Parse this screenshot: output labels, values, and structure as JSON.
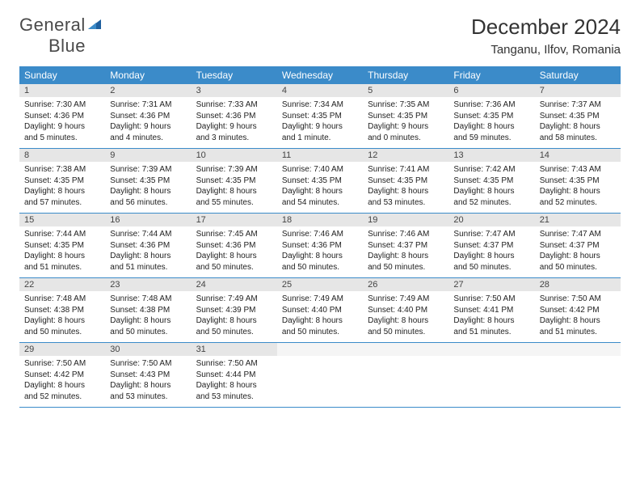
{
  "brand": {
    "word1": "General",
    "word2": "Blue"
  },
  "title": "December 2024",
  "location": "Tanganu, Ilfov, Romania",
  "colors": {
    "header_bg": "#3b8bc9",
    "header_text": "#ffffff",
    "daynum_bg": "#e6e6e6",
    "row_border": "#3b8bc9",
    "logo_gray": "#4a4a4a",
    "logo_blue": "#2b7bbf"
  },
  "weekdays": [
    "Sunday",
    "Monday",
    "Tuesday",
    "Wednesday",
    "Thursday",
    "Friday",
    "Saturday"
  ],
  "weeks": [
    [
      {
        "n": "1",
        "sr": "Sunrise: 7:30 AM",
        "ss": "Sunset: 4:36 PM",
        "dl": "Daylight: 9 hours and 5 minutes."
      },
      {
        "n": "2",
        "sr": "Sunrise: 7:31 AM",
        "ss": "Sunset: 4:36 PM",
        "dl": "Daylight: 9 hours and 4 minutes."
      },
      {
        "n": "3",
        "sr": "Sunrise: 7:33 AM",
        "ss": "Sunset: 4:36 PM",
        "dl": "Daylight: 9 hours and 3 minutes."
      },
      {
        "n": "4",
        "sr": "Sunrise: 7:34 AM",
        "ss": "Sunset: 4:35 PM",
        "dl": "Daylight: 9 hours and 1 minute."
      },
      {
        "n": "5",
        "sr": "Sunrise: 7:35 AM",
        "ss": "Sunset: 4:35 PM",
        "dl": "Daylight: 9 hours and 0 minutes."
      },
      {
        "n": "6",
        "sr": "Sunrise: 7:36 AM",
        "ss": "Sunset: 4:35 PM",
        "dl": "Daylight: 8 hours and 59 minutes."
      },
      {
        "n": "7",
        "sr": "Sunrise: 7:37 AM",
        "ss": "Sunset: 4:35 PM",
        "dl": "Daylight: 8 hours and 58 minutes."
      }
    ],
    [
      {
        "n": "8",
        "sr": "Sunrise: 7:38 AM",
        "ss": "Sunset: 4:35 PM",
        "dl": "Daylight: 8 hours and 57 minutes."
      },
      {
        "n": "9",
        "sr": "Sunrise: 7:39 AM",
        "ss": "Sunset: 4:35 PM",
        "dl": "Daylight: 8 hours and 56 minutes."
      },
      {
        "n": "10",
        "sr": "Sunrise: 7:39 AM",
        "ss": "Sunset: 4:35 PM",
        "dl": "Daylight: 8 hours and 55 minutes."
      },
      {
        "n": "11",
        "sr": "Sunrise: 7:40 AM",
        "ss": "Sunset: 4:35 PM",
        "dl": "Daylight: 8 hours and 54 minutes."
      },
      {
        "n": "12",
        "sr": "Sunrise: 7:41 AM",
        "ss": "Sunset: 4:35 PM",
        "dl": "Daylight: 8 hours and 53 minutes."
      },
      {
        "n": "13",
        "sr": "Sunrise: 7:42 AM",
        "ss": "Sunset: 4:35 PM",
        "dl": "Daylight: 8 hours and 52 minutes."
      },
      {
        "n": "14",
        "sr": "Sunrise: 7:43 AM",
        "ss": "Sunset: 4:35 PM",
        "dl": "Daylight: 8 hours and 52 minutes."
      }
    ],
    [
      {
        "n": "15",
        "sr": "Sunrise: 7:44 AM",
        "ss": "Sunset: 4:35 PM",
        "dl": "Daylight: 8 hours and 51 minutes."
      },
      {
        "n": "16",
        "sr": "Sunrise: 7:44 AM",
        "ss": "Sunset: 4:36 PM",
        "dl": "Daylight: 8 hours and 51 minutes."
      },
      {
        "n": "17",
        "sr": "Sunrise: 7:45 AM",
        "ss": "Sunset: 4:36 PM",
        "dl": "Daylight: 8 hours and 50 minutes."
      },
      {
        "n": "18",
        "sr": "Sunrise: 7:46 AM",
        "ss": "Sunset: 4:36 PM",
        "dl": "Daylight: 8 hours and 50 minutes."
      },
      {
        "n": "19",
        "sr": "Sunrise: 7:46 AM",
        "ss": "Sunset: 4:37 PM",
        "dl": "Daylight: 8 hours and 50 minutes."
      },
      {
        "n": "20",
        "sr": "Sunrise: 7:47 AM",
        "ss": "Sunset: 4:37 PM",
        "dl": "Daylight: 8 hours and 50 minutes."
      },
      {
        "n": "21",
        "sr": "Sunrise: 7:47 AM",
        "ss": "Sunset: 4:37 PM",
        "dl": "Daylight: 8 hours and 50 minutes."
      }
    ],
    [
      {
        "n": "22",
        "sr": "Sunrise: 7:48 AM",
        "ss": "Sunset: 4:38 PM",
        "dl": "Daylight: 8 hours and 50 minutes."
      },
      {
        "n": "23",
        "sr": "Sunrise: 7:48 AM",
        "ss": "Sunset: 4:38 PM",
        "dl": "Daylight: 8 hours and 50 minutes."
      },
      {
        "n": "24",
        "sr": "Sunrise: 7:49 AM",
        "ss": "Sunset: 4:39 PM",
        "dl": "Daylight: 8 hours and 50 minutes."
      },
      {
        "n": "25",
        "sr": "Sunrise: 7:49 AM",
        "ss": "Sunset: 4:40 PM",
        "dl": "Daylight: 8 hours and 50 minutes."
      },
      {
        "n": "26",
        "sr": "Sunrise: 7:49 AM",
        "ss": "Sunset: 4:40 PM",
        "dl": "Daylight: 8 hours and 50 minutes."
      },
      {
        "n": "27",
        "sr": "Sunrise: 7:50 AM",
        "ss": "Sunset: 4:41 PM",
        "dl": "Daylight: 8 hours and 51 minutes."
      },
      {
        "n": "28",
        "sr": "Sunrise: 7:50 AM",
        "ss": "Sunset: 4:42 PM",
        "dl": "Daylight: 8 hours and 51 minutes."
      }
    ],
    [
      {
        "n": "29",
        "sr": "Sunrise: 7:50 AM",
        "ss": "Sunset: 4:42 PM",
        "dl": "Daylight: 8 hours and 52 minutes."
      },
      {
        "n": "30",
        "sr": "Sunrise: 7:50 AM",
        "ss": "Sunset: 4:43 PM",
        "dl": "Daylight: 8 hours and 53 minutes."
      },
      {
        "n": "31",
        "sr": "Sunrise: 7:50 AM",
        "ss": "Sunset: 4:44 PM",
        "dl": "Daylight: 8 hours and 53 minutes."
      },
      {
        "empty": true
      },
      {
        "empty": true
      },
      {
        "empty": true
      },
      {
        "empty": true
      }
    ]
  ]
}
